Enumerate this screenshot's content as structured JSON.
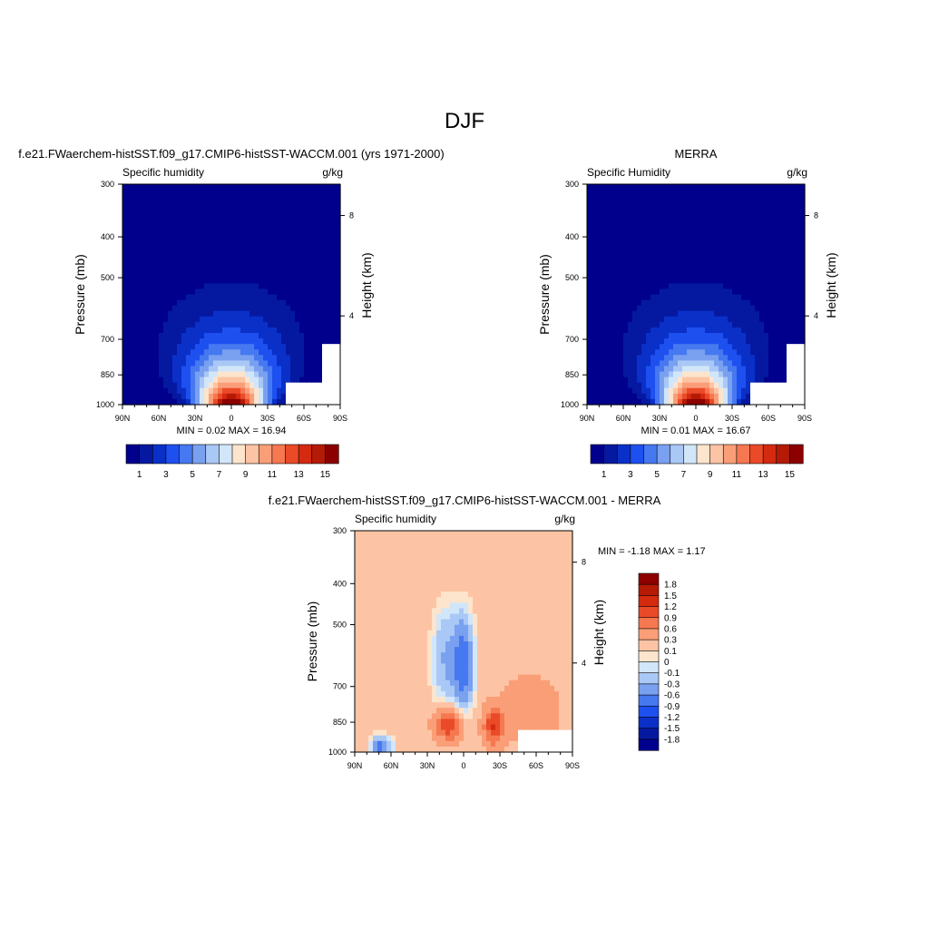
{
  "page_title": "DJF",
  "chart_data": [
    {
      "type": "heatmap",
      "title": "f.e21.FWaerchem-histSST.f09_g17.CMIP6-histSST-WACCM.001 (yrs 1971-2000)",
      "subtitle_left": "Specific humidity",
      "subtitle_right": "g/kg",
      "ylabel": "Pressure (mb)",
      "ylabel_right": "Height (km)",
      "x_ticks": [
        "90N",
        "60N",
        "30N",
        "0",
        "30S",
        "60S",
        "90S"
      ],
      "y_ticks": [
        "300",
        "400",
        "500",
        "700",
        "850",
        "1000"
      ],
      "y_right_ticks": [
        "8",
        "4"
      ],
      "y_scale": "log",
      "ylim": [
        1000,
        300
      ],
      "stats": "MIN =   0.02  MAX =  16.94",
      "min": 0.02,
      "max": 16.94,
      "peak_lat": 0,
      "colorbar_labels": [
        "1",
        "3",
        "5",
        "7",
        "9",
        "11",
        "13",
        "15"
      ],
      "colorbar_colors": [
        "#00008c",
        "#0519a0",
        "#0a30c8",
        "#1e50f0",
        "#4678f0",
        "#7aa0f0",
        "#aac8f5",
        "#d2e6fa",
        "#fde4cc",
        "#fcc4a4",
        "#fa9e78",
        "#f57850",
        "#eb4a28",
        "#d42a10",
        "#b41a06",
        "#8c0000"
      ]
    },
    {
      "type": "heatmap",
      "title": "MERRA",
      "subtitle_left": "Specific Humidity",
      "subtitle_right": "g/kg",
      "ylabel": "Pressure (mb)",
      "ylabel_right": "Height (km)",
      "x_ticks": [
        "90N",
        "60N",
        "30N",
        "0",
        "30S",
        "60S",
        "90S"
      ],
      "y_ticks": [
        "300",
        "400",
        "500",
        "700",
        "850",
        "1000"
      ],
      "y_right_ticks": [
        "8",
        "4"
      ],
      "y_scale": "log",
      "ylim": [
        1000,
        300
      ],
      "stats": "MIN =   0.01  MAX =  16.67",
      "min": 0.01,
      "max": 16.67,
      "peak_lat": 0,
      "colorbar_labels": [
        "1",
        "3",
        "5",
        "7",
        "9",
        "11",
        "13",
        "15"
      ],
      "colorbar_colors": [
        "#00008c",
        "#0519a0",
        "#0a30c8",
        "#1e50f0",
        "#4678f0",
        "#7aa0f0",
        "#aac8f5",
        "#d2e6fa",
        "#fde4cc",
        "#fcc4a4",
        "#fa9e78",
        "#f57850",
        "#eb4a28",
        "#d42a10",
        "#b41a06",
        "#8c0000"
      ]
    },
    {
      "type": "heatmap",
      "title": "f.e21.FWaerchem-histSST.f09_g17.CMIP6-histSST-WACCM.001 - MERRA",
      "subtitle_left": "Specific humidity",
      "subtitle_right": "g/kg",
      "ylabel": "Pressure (mb)",
      "ylabel_right": "Height (km)",
      "x_ticks": [
        "90N",
        "60N",
        "30N",
        "0",
        "30S",
        "60S",
        "90S"
      ],
      "y_ticks": [
        "300",
        "400",
        "500",
        "700",
        "850",
        "1000"
      ],
      "y_right_ticks": [
        "8",
        "4"
      ],
      "y_scale": "log",
      "ylim": [
        1000,
        300
      ],
      "stats": "MIN =  -1.18  MAX =   1.17",
      "min": -1.18,
      "max": 1.17,
      "colorbar_labels": [
        "1.8",
        "1.5",
        "1.2",
        "0.9",
        "0.6",
        "0.3",
        "0.1",
        "0",
        "-0.1",
        "-0.3",
        "-0.6",
        "-0.9",
        "-1.2",
        "-1.5",
        "-1.8"
      ],
      "colorbar_colors": [
        "#8c0000",
        "#b41a06",
        "#d42a10",
        "#eb4a28",
        "#f57850",
        "#fa9e78",
        "#fcc4a4",
        "#fde4cc",
        "#d2e6fa",
        "#aac8f5",
        "#7aa0f0",
        "#4678f0",
        "#1e50f0",
        "#0a30c8",
        "#0519a0",
        "#00008c"
      ]
    }
  ]
}
